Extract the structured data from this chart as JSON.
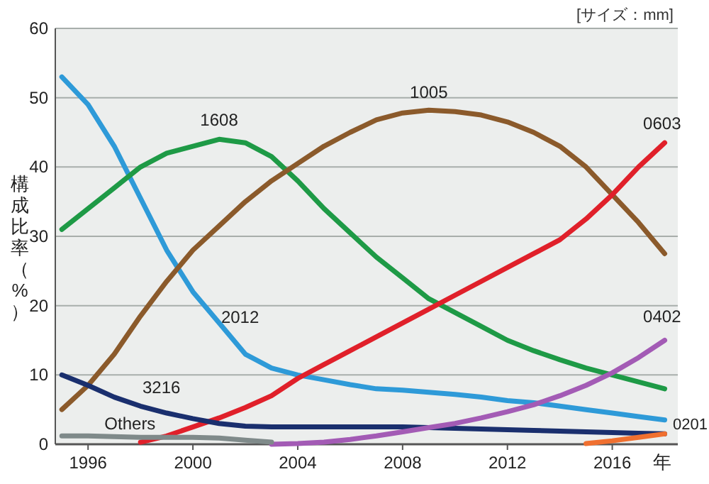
{
  "chart_data": {
    "type": "line",
    "ylabel": "構成比率（%）",
    "xlabel": "年",
    "annotations": [
      "[サイズ：mm]"
    ],
    "x": [
      1995,
      1996,
      1997,
      1998,
      1999,
      2000,
      2001,
      2002,
      2003,
      2004,
      2005,
      2006,
      2007,
      2008,
      2009,
      2010,
      2011,
      2012,
      2013,
      2014,
      2015,
      2016,
      2017,
      2018
    ],
    "xlim": [
      1994.75,
      2018.5
    ],
    "xticks": [
      1996,
      2000,
      2004,
      2008,
      2012,
      2016
    ],
    "ylim": [
      0,
      60
    ],
    "yticks": [
      0,
      10,
      20,
      30,
      40,
      50,
      60
    ],
    "grid": "y",
    "legend": false,
    "marker": "none",
    "line_style": "solid",
    "series": [
      {
        "name": "2012",
        "color": "#2e9ad8",
        "values": [
          53,
          49,
          43,
          35.5,
          28,
          22,
          17.5,
          13,
          11,
          10,
          9.3,
          8.6,
          8,
          7.8,
          7.5,
          7.2,
          6.8,
          6.3,
          6,
          5.5,
          5,
          4.5,
          4,
          3.5
        ]
      },
      {
        "name": "1608",
        "color": "#1e9a46",
        "values": [
          31,
          34,
          37,
          40,
          42,
          43,
          44,
          43.5,
          41.5,
          38,
          34,
          30.5,
          27,
          24,
          21,
          19,
          17,
          15,
          13.5,
          12.2,
          11,
          10,
          9,
          8
        ]
      },
      {
        "name": "1005",
        "color": "#8b5a2b",
        "values": [
          5,
          8.5,
          13,
          18.5,
          23.5,
          28,
          31.5,
          35,
          38,
          40.5,
          43,
          45,
          46.8,
          47.8,
          48.2,
          48,
          47.5,
          46.5,
          45,
          43,
          40,
          36,
          32,
          27.5
        ]
      },
      {
        "name": "0603",
        "color": "#e0202a",
        "values": [
          null,
          null,
          null,
          0.3,
          1.2,
          2.5,
          3.8,
          5.3,
          7,
          9.5,
          11.5,
          13.5,
          15.5,
          17.5,
          19.5,
          21.5,
          23.5,
          25.5,
          27.5,
          29.5,
          32.5,
          36,
          40,
          43.5
        ]
      },
      {
        "name": "3216",
        "color": "#1a2f6e",
        "values": [
          10,
          8.5,
          6.8,
          5.5,
          4.5,
          3.7,
          3,
          2.6,
          2.5,
          2.5,
          2.5,
          2.5,
          2.5,
          2.5,
          2.4,
          2.3,
          2.2,
          2.1,
          2,
          1.9,
          1.8,
          1.7,
          1.6,
          1.5
        ]
      },
      {
        "name": "0402",
        "color": "#a35bb5",
        "values": [
          null,
          null,
          null,
          null,
          null,
          null,
          null,
          null,
          0,
          0.1,
          0.3,
          0.7,
          1.2,
          1.8,
          2.4,
          3,
          3.8,
          4.7,
          5.7,
          7,
          8.5,
          10.3,
          12.5,
          15
        ]
      },
      {
        "name": "0201",
        "color": "#f07030",
        "values": [
          null,
          null,
          null,
          null,
          null,
          null,
          null,
          null,
          null,
          null,
          null,
          null,
          null,
          null,
          null,
          null,
          null,
          null,
          null,
          null,
          0.1,
          0.5,
          1,
          1.5
        ]
      },
      {
        "name": "Others",
        "color": "#7f8a8a",
        "values": [
          1.2,
          1.2,
          1.1,
          1,
          1,
          1,
          0.9,
          0.6,
          0.3,
          null,
          null,
          null,
          null,
          null,
          null,
          null,
          null,
          null,
          null,
          null,
          null,
          null,
          null,
          null
        ]
      }
    ]
  }
}
